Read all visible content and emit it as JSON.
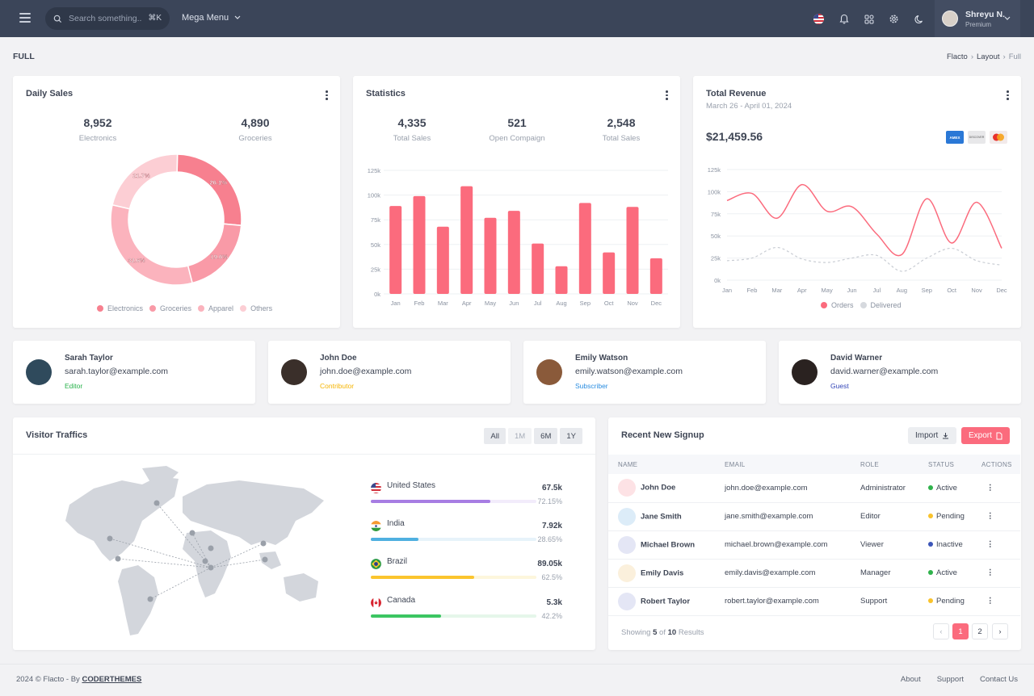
{
  "topbar": {
    "search_placeholder": "Search something..",
    "search_shortcut": "⌘K",
    "mega_menu": "Mega Menu",
    "user_name": "Shreyu N.",
    "user_tag": "Premium"
  },
  "page": {
    "title": "FULL",
    "breadcrumb": [
      "Flacto",
      "Layout",
      "Full"
    ]
  },
  "daily_sales": {
    "title": "Daily Sales",
    "stats": [
      {
        "value": "8,952",
        "label": "Electronics"
      },
      {
        "value": "4,890",
        "label": "Groceries"
      }
    ],
    "legend": [
      "Electronics",
      "Groceries",
      "Apparel",
      "Others"
    ]
  },
  "statistics": {
    "title": "Statistics",
    "stats": [
      {
        "value": "4,335",
        "label": "Total Sales"
      },
      {
        "value": "521",
        "label": "Open Compaign"
      },
      {
        "value": "2,548",
        "label": "Total Sales"
      }
    ]
  },
  "revenue": {
    "title": "Total Revenue",
    "date_range": "March 26 - April 01, 2024",
    "amount": "$21,459.56",
    "cards": [
      "AMEX",
      "DISCOVER",
      "MASTERCARD"
    ],
    "legend": [
      "Orders",
      "Delivered"
    ]
  },
  "chart_data": [
    {
      "type": "pie",
      "title": "Daily Sales",
      "categories": [
        "Electronics",
        "Groceries",
        "Apparel",
        "Others"
      ],
      "values": [
        26.1,
        19.6,
        32.6,
        21.7
      ],
      "labels": [
        "26.1%",
        "19.6%",
        "32.6%",
        "21.7%"
      ],
      "colors": [
        "#f7808f",
        "#f99aa7",
        "#fbb3bd",
        "#fcced4"
      ]
    },
    {
      "type": "bar",
      "title": "Statistics",
      "categories": [
        "Jan",
        "Feb",
        "Mar",
        "Apr",
        "May",
        "Jun",
        "Jul",
        "Aug",
        "Sep",
        "Oct",
        "Nov",
        "Dec"
      ],
      "values": [
        89000,
        99000,
        68000,
        109000,
        77000,
        84000,
        51000,
        28000,
        92000,
        42000,
        88000,
        36000
      ],
      "ylim": [
        0,
        125000
      ],
      "yticks": [
        "0k",
        "25k",
        "50k",
        "75k",
        "100k",
        "125k"
      ],
      "color": "#fb6b7d"
    },
    {
      "type": "line",
      "title": "Total Revenue",
      "categories": [
        "Jan",
        "Feb",
        "Mar",
        "Apr",
        "May",
        "Jun",
        "Jul",
        "Aug",
        "Sep",
        "Oct",
        "Nov",
        "Dec"
      ],
      "series": [
        {
          "name": "Orders",
          "values": [
            90000,
            98000,
            70000,
            108000,
            78000,
            83000,
            52000,
            29000,
            92000,
            42000,
            88000,
            36000
          ],
          "color": "#fb6b7d"
        },
        {
          "name": "Delivered",
          "values": [
            22000,
            25000,
            37000,
            24000,
            20000,
            25000,
            28000,
            10000,
            25000,
            36000,
            22000,
            17000
          ],
          "color": "#c8ccd3"
        }
      ],
      "ylim": [
        0,
        125000
      ],
      "yticks": [
        "0k",
        "25k",
        "50k",
        "75k",
        "100k",
        "125k"
      ]
    }
  ],
  "contacts": [
    {
      "name": "Sarah Taylor",
      "email": "sarah.taylor@example.com",
      "role": "Editor",
      "role_color": "#27b24a",
      "avatar_color": "#2f4a5c"
    },
    {
      "name": "John Doe",
      "email": "john.doe@example.com",
      "role": "Contributor",
      "role_color": "#f5b400",
      "avatar_color": "#3a2f2a"
    },
    {
      "name": "Emily Watson",
      "email": "emily.watson@example.com",
      "role": "Subscriber",
      "role_color": "#2a8de0",
      "avatar_color": "#8a5a3a"
    },
    {
      "name": "David Warner",
      "email": "david.warner@example.com",
      "role": "Guest",
      "role_color": "#3346b8",
      "avatar_color": "#2a2220"
    }
  ],
  "visitors": {
    "title": "Visitor Traffics",
    "tabs": [
      "All",
      "1M",
      "6M",
      "1Y"
    ],
    "countries": [
      {
        "name": "United States",
        "value": "67.5k",
        "percent": "72.15%",
        "fraction": 0.7215,
        "color": "#a77de3",
        "track": "#f2ecfb"
      },
      {
        "name": "India",
        "value": "7.92k",
        "percent": "28.65%",
        "fraction": 0.2865,
        "color": "#4fb0e0",
        "track": "#e7f3fa"
      },
      {
        "name": "Brazil",
        "value": "89.05k",
        "percent": "62.5%",
        "fraction": 0.625,
        "color": "#fbc52e",
        "track": "#fdf6dc"
      },
      {
        "name": "Canada",
        "value": "5.3k",
        "percent": "42.2%",
        "fraction": 0.422,
        "color": "#3cc562",
        "track": "#e5f6ea"
      }
    ]
  },
  "signup": {
    "title": "Recent New Signup",
    "import_label": "Import",
    "export_label": "Export",
    "columns": [
      "NAME",
      "EMAIL",
      "ROLE",
      "STATUS",
      "ACTIONS"
    ],
    "rows": [
      {
        "name": "John Doe",
        "email": "john.doe@example.com",
        "role": "Administrator",
        "status": "Active",
        "status_color": "#2fb24b",
        "avatar_bg": "#fde2e5"
      },
      {
        "name": "Jane Smith",
        "email": "jane.smith@example.com",
        "role": "Editor",
        "status": "Pending",
        "status_color": "#f9c22c",
        "avatar_bg": "#dcecf8"
      },
      {
        "name": "Michael Brown",
        "email": "michael.brown@example.com",
        "role": "Viewer",
        "status": "Inactive",
        "status_color": "#3b55b8",
        "avatar_bg": "#e4e6f5"
      },
      {
        "name": "Emily Davis",
        "email": "emily.davis@example.com",
        "role": "Manager",
        "status": "Active",
        "status_color": "#2fb24b",
        "avatar_bg": "#fbf0dc"
      },
      {
        "name": "Robert Taylor",
        "email": "robert.taylor@example.com",
        "role": "Support",
        "status": "Pending",
        "status_color": "#f9c22c",
        "avatar_bg": "#e4e6f5"
      }
    ],
    "showing_prefix": "Showing",
    "showing_count": "5",
    "showing_of": "of",
    "showing_total": "10",
    "showing_suffix": "Results",
    "pages": [
      "1",
      "2"
    ]
  },
  "footer": {
    "copyright": "2024 © Flacto - By",
    "brand": "CODERTHEMES",
    "links": [
      "About",
      "Support",
      "Contact Us"
    ]
  }
}
